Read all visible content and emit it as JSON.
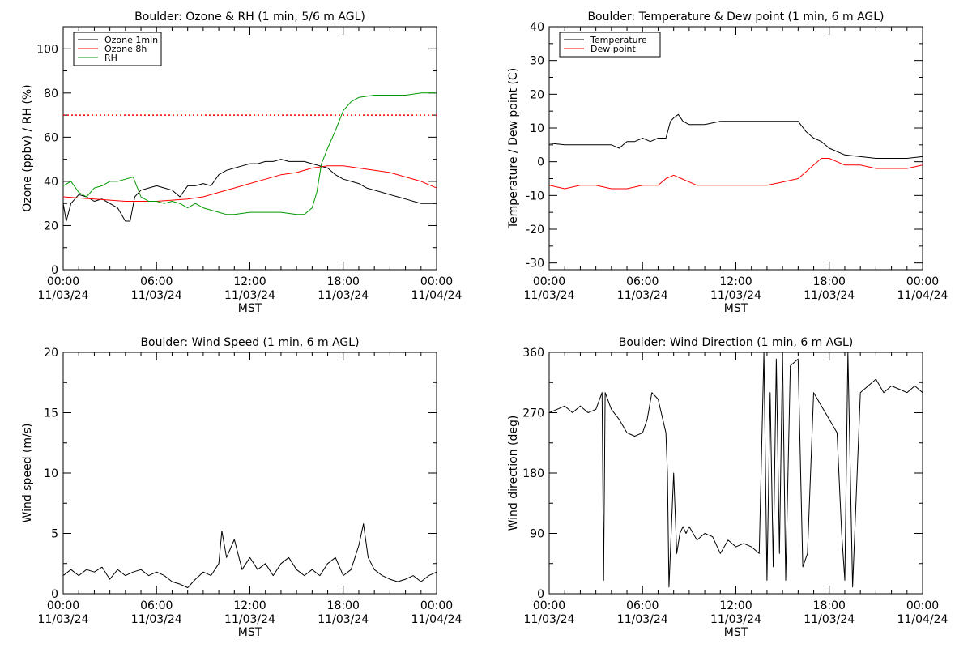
{
  "chart_data": [
    {
      "type": "line",
      "title": "Boulder: Ozone & RH (1 min, 5/6 m AGL)",
      "xlabel": "MST",
      "ylabel": "Ozone (ppbv) / RH (%)",
      "xlim": [
        "11/03/24 00:00",
        "11/04/24 00:00"
      ],
      "ylim": [
        0,
        110
      ],
      "yticks": [
        0,
        20,
        40,
        60,
        80,
        100
      ],
      "xticks": [
        {
          "time": "00:00",
          "date": "11/03/24"
        },
        {
          "time": "06:00",
          "date": "11/03/24"
        },
        {
          "time": "12:00",
          "date": "11/03/24"
        },
        {
          "time": "18:00",
          "date": "11/03/24"
        },
        {
          "time": "00:00",
          "date": "11/04/24"
        }
      ],
      "legend_position": "top-left",
      "reference_lines": [
        {
          "y": 70,
          "color": "#ff0000",
          "style": "dotted"
        }
      ],
      "x_unit": "hours",
      "series": [
        {
          "name": "Ozone 1min",
          "color": "#000000",
          "x": [
            0,
            0.2,
            0.5,
            1,
            1.5,
            2,
            2.5,
            3,
            3.5,
            4,
            4.3,
            4.6,
            5,
            5.5,
            6,
            6.5,
            7,
            7.5,
            8,
            8.5,
            9,
            9.5,
            10,
            10.5,
            11,
            11.5,
            12,
            12.5,
            13,
            13.5,
            14,
            14.5,
            15,
            15.5,
            16,
            16.5,
            17,
            17.5,
            18,
            18.5,
            19,
            19.5,
            20,
            20.5,
            21,
            21.5,
            22,
            22.5,
            23,
            23.5,
            24
          ],
          "y": [
            30,
            22,
            30,
            34,
            33,
            31,
            32,
            30,
            28,
            22,
            22,
            33,
            36,
            37,
            38,
            37,
            36,
            33,
            38,
            38,
            39,
            38,
            43,
            45,
            46,
            47,
            48,
            48,
            49,
            49,
            50,
            49,
            49,
            49,
            48,
            47,
            46,
            43,
            41,
            40,
            39,
            37,
            36,
            35,
            34,
            33,
            32,
            31,
            30,
            30,
            30
          ]
        },
        {
          "name": "Ozone 8h",
          "color": "#ff0000",
          "x": [
            0,
            2,
            4,
            6,
            8,
            9,
            10,
            11,
            12,
            13,
            14,
            15,
            16,
            17,
            18,
            19,
            20,
            21,
            22,
            23,
            24
          ],
          "y": [
            33,
            32,
            31,
            31,
            32,
            33,
            35,
            37,
            39,
            41,
            43,
            44,
            46,
            47,
            47,
            46,
            45,
            44,
            42,
            40,
            37
          ]
        },
        {
          "name": "RH",
          "color": "#009900",
          "x": [
            0,
            0.5,
            1,
            1.5,
            2,
            2.5,
            3,
            3.5,
            4,
            4.5,
            5,
            5.5,
            6,
            6.5,
            7,
            7.5,
            8,
            8.5,
            9,
            9.5,
            10,
            10.5,
            11,
            12,
            13,
            14,
            15,
            15.5,
            16,
            16.3,
            16.6,
            17,
            17.5,
            18,
            18.5,
            19,
            20,
            21,
            22,
            23,
            24
          ],
          "y": [
            38,
            40,
            35,
            33,
            37,
            38,
            40,
            40,
            41,
            42,
            33,
            31,
            31,
            30,
            31,
            30,
            28,
            30,
            28,
            27,
            26,
            25,
            25,
            26,
            26,
            26,
            25,
            25,
            28,
            35,
            48,
            55,
            63,
            72,
            76,
            78,
            79,
            79,
            79,
            80,
            80
          ]
        }
      ]
    },
    {
      "type": "line",
      "title": "Boulder: Temperature & Dew point (1 min, 6 m AGL)",
      "xlabel": "MST",
      "ylabel": "Temperature / Dew point (C)",
      "xlim": [
        "11/03/24 00:00",
        "11/04/24 00:00"
      ],
      "ylim": [
        -32,
        40
      ],
      "yticks": [
        -30,
        -20,
        -10,
        0,
        10,
        20,
        30,
        40
      ],
      "xticks": [
        {
          "time": "00:00",
          "date": "11/03/24"
        },
        {
          "time": "06:00",
          "date": "11/03/24"
        },
        {
          "time": "12:00",
          "date": "11/03/24"
        },
        {
          "time": "18:00",
          "date": "11/03/24"
        },
        {
          "time": "00:00",
          "date": "11/04/24"
        }
      ],
      "legend_position": "top-left",
      "x_unit": "hours",
      "series": [
        {
          "name": "Temperature",
          "color": "#000000",
          "x": [
            0,
            1,
            2,
            3,
            4,
            4.5,
            5,
            5.5,
            6,
            6.5,
            7,
            7.5,
            7.8,
            8,
            8.3,
            8.6,
            9,
            10,
            11,
            12,
            13,
            14,
            15,
            15.5,
            16,
            16.5,
            17,
            17.5,
            18,
            19,
            20,
            21,
            22,
            23,
            24
          ],
          "y": [
            5.5,
            5,
            5,
            5,
            5,
            4,
            6,
            6,
            7,
            6,
            7,
            7,
            12,
            13,
            14,
            12,
            11,
            11,
            12,
            12,
            12,
            12,
            12,
            12,
            12,
            9,
            7,
            6,
            4,
            2,
            1.5,
            1,
            1,
            1,
            1.5
          ]
        },
        {
          "name": "Dew point",
          "color": "#ff0000",
          "x": [
            0,
            1,
            2,
            3,
            4,
            5,
            6,
            7,
            7.5,
            8,
            8.5,
            9,
            9.5,
            10,
            11,
            12,
            13,
            14,
            15,
            16,
            16.5,
            17,
            17.5,
            18,
            18.5,
            19,
            20,
            21,
            22,
            23,
            24
          ],
          "y": [
            -7,
            -8,
            -7,
            -7,
            -8,
            -8,
            -7,
            -7,
            -5,
            -4,
            -5,
            -6,
            -7,
            -7,
            -7,
            -7,
            -7,
            -7,
            -6,
            -5,
            -3,
            -1,
            1,
            1,
            0,
            -1,
            -1,
            -2,
            -2,
            -2,
            -1
          ]
        }
      ]
    },
    {
      "type": "line",
      "title": "Boulder: Wind Speed (1 min, 6 m AGL)",
      "xlabel": "MST",
      "ylabel": "Wind speed (m/s)",
      "xlim": [
        "11/03/24 00:00",
        "11/04/24 00:00"
      ],
      "ylim": [
        0,
        20
      ],
      "yticks": [
        0,
        5,
        10,
        15,
        20
      ],
      "xticks": [
        {
          "time": "00:00",
          "date": "11/03/24"
        },
        {
          "time": "06:00",
          "date": "11/03/24"
        },
        {
          "time": "12:00",
          "date": "11/03/24"
        },
        {
          "time": "18:00",
          "date": "11/03/24"
        },
        {
          "time": "00:00",
          "date": "11/04/24"
        }
      ],
      "x_unit": "hours",
      "series": [
        {
          "color": "#000000",
          "x": [
            0,
            0.5,
            1,
            1.5,
            2,
            2.5,
            3,
            3.5,
            4,
            4.5,
            5,
            5.5,
            6,
            6.5,
            7,
            7.5,
            8,
            8.5,
            9,
            9.5,
            10,
            10.2,
            10.5,
            11,
            11.5,
            12,
            12.5,
            13,
            13.5,
            14,
            14.5,
            15,
            15.5,
            16,
            16.5,
            17,
            17.5,
            18,
            18.5,
            19,
            19.3,
            19.6,
            20,
            20.5,
            21,
            21.5,
            22,
            22.5,
            23,
            23.5,
            24
          ],
          "y": [
            1.5,
            2,
            1.5,
            2,
            1.8,
            2.2,
            1.2,
            2,
            1.5,
            1.8,
            2,
            1.5,
            1.8,
            1.5,
            1,
            0.8,
            0.5,
            1.2,
            1.8,
            1.5,
            2.5,
            5.2,
            3,
            4.5,
            2,
            3,
            2,
            2.5,
            1.5,
            2.5,
            3,
            2,
            1.5,
            2,
            1.5,
            2.5,
            3,
            1.5,
            2,
            4,
            5.8,
            3,
            2,
            1.5,
            1.2,
            1,
            1.2,
            1.5,
            1,
            1.5,
            1.8
          ]
        }
      ]
    },
    {
      "type": "line",
      "title": "Boulder: Wind Direction (1 min, 6 m AGL)",
      "xlabel": "MST",
      "ylabel": "Wind direction (deg)",
      "xlim": [
        "11/03/24 00:00",
        "11/04/24 00:00"
      ],
      "ylim": [
        0,
        360
      ],
      "yticks": [
        0,
        90,
        180,
        270,
        360
      ],
      "xticks": [
        {
          "time": "00:00",
          "date": "11/03/24"
        },
        {
          "time": "06:00",
          "date": "11/03/24"
        },
        {
          "time": "12:00",
          "date": "11/03/24"
        },
        {
          "time": "18:00",
          "date": "11/03/24"
        },
        {
          "time": "00:00",
          "date": "11/04/24"
        }
      ],
      "x_unit": "hours",
      "series": [
        {
          "color": "#000000",
          "x": [
            0,
            0.5,
            1,
            1.5,
            2,
            2.5,
            3,
            3.4,
            3.5,
            3.6,
            4,
            4.5,
            5,
            5.5,
            6,
            6.3,
            6.6,
            7,
            7.5,
            7.6,
            7.7,
            8,
            8.2,
            8.4,
            8.6,
            8.8,
            9,
            9.5,
            10,
            10.5,
            11,
            11.5,
            12,
            12.5,
            13,
            13.5,
            13.8,
            14,
            14.2,
            14.4,
            14.6,
            14.8,
            15,
            15.2,
            15.5,
            16,
            16.3,
            16.6,
            17,
            17.5,
            18,
            18.5,
            18.8,
            19,
            19.2,
            19.5,
            20,
            20.5,
            21,
            21.5,
            22,
            22.5,
            23,
            23.5,
            24
          ],
          "y": [
            270,
            275,
            280,
            270,
            280,
            270,
            275,
            300,
            20,
            300,
            275,
            260,
            240,
            235,
            240,
            260,
            300,
            290,
            240,
            180,
            10,
            180,
            60,
            90,
            100,
            90,
            100,
            80,
            90,
            85,
            60,
            80,
            70,
            75,
            70,
            60,
            360,
            20,
            300,
            40,
            350,
            60,
            360,
            20,
            340,
            350,
            40,
            60,
            300,
            280,
            260,
            240,
            90,
            20,
            360,
            10,
            300,
            310,
            320,
            300,
            310,
            305,
            300,
            310,
            300
          ]
        }
      ]
    }
  ]
}
